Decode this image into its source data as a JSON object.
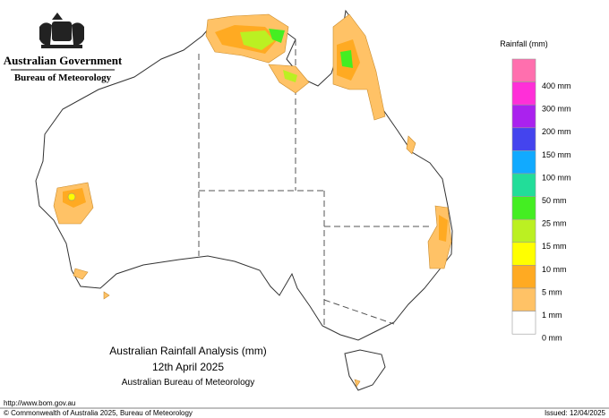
{
  "header": {
    "government": "Australian Government",
    "agency": "Bureau of Meteorology"
  },
  "legend": {
    "title": "Rainfall (mm)",
    "items": [
      {
        "label": "400 mm",
        "color": "#ff6fae"
      },
      {
        "label": "300 mm",
        "color": "#ff2fd8"
      },
      {
        "label": "200 mm",
        "color": "#aa22ee"
      },
      {
        "label": "150 mm",
        "color": "#4444ee"
      },
      {
        "label": "100 mm",
        "color": "#11aaff"
      },
      {
        "label": "50 mm",
        "color": "#22dd99"
      },
      {
        "label": "25 mm",
        "color": "#44ee22"
      },
      {
        "label": "15 mm",
        "color": "#bbf022"
      },
      {
        "label": "10 mm",
        "color": "#ffff00"
      },
      {
        "label": "5 mm",
        "color": "#ffaa22"
      },
      {
        "label": "1 mm",
        "color": "#ffc266"
      },
      {
        "label": "0 mm",
        "color": "#ffffff"
      }
    ]
  },
  "map": {
    "title": "Australian Rainfall Analysis (mm)",
    "date": "12th April 2025",
    "source": "Australian Bureau of Meteorology"
  },
  "footer": {
    "url": "http://www.bom.gov.au",
    "copyright": "© Commonwealth of Australia 2025, Bureau of Meteorology",
    "issued": "Issued: 12/04/2025"
  }
}
